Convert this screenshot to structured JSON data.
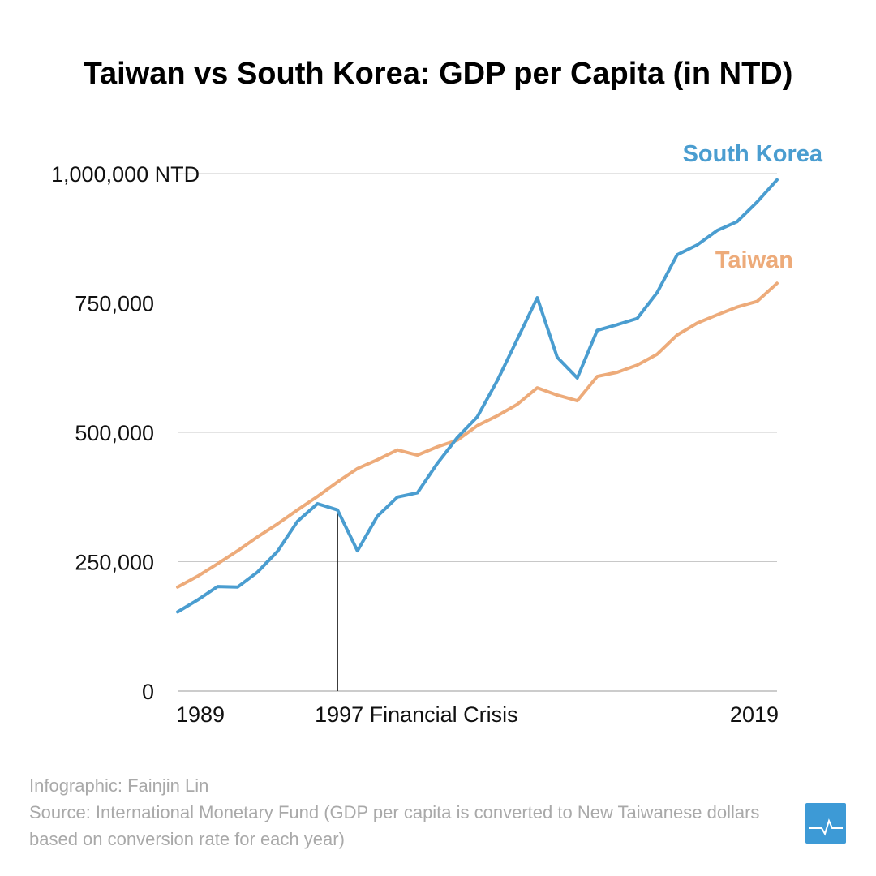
{
  "header": {
    "title": "Taiwan vs South Korea: GDP per Capita (in NTD)"
  },
  "footer": {
    "credit": "Infographic: Fainjin Lin",
    "source": "Source: International Monetary Fund (GDP per capita is converted to New Taiwanese dollars based on conversion rate for each year)"
  },
  "colors": {
    "south_korea": "#4a9dd0",
    "taiwan": "#edab7a",
    "grid": "#c8c8c8",
    "logo": "#3d9ad6"
  },
  "logo": {
    "icon": "heartbeat-chart-icon"
  },
  "chart_data": {
    "type": "line",
    "title": "Taiwan vs South Korea: GDP per Capita (in NTD)",
    "xlabel": "",
    "ylabel": "",
    "x": [
      1989,
      1990,
      1991,
      1992,
      1993,
      1994,
      1995,
      1996,
      1997,
      1998,
      1999,
      2000,
      2001,
      2002,
      2003,
      2004,
      2005,
      2006,
      2007,
      2008,
      2009,
      2010,
      2011,
      2012,
      2013,
      2014,
      2015,
      2016,
      2017,
      2018,
      2019
    ],
    "ylim": [
      0,
      1000000
    ],
    "xlim": [
      1989,
      2019
    ],
    "y_ticks": [
      {
        "value": 0,
        "label": "0"
      },
      {
        "value": 250000,
        "label": "250,000"
      },
      {
        "value": 500000,
        "label": "500,000"
      },
      {
        "value": 750000,
        "label": "750,000"
      },
      {
        "value": 1000000,
        "label": "1,000,000 NTD"
      }
    ],
    "x_ticks": [
      {
        "value": 1989,
        "label": "1989"
      },
      {
        "value": 1997,
        "label": "1997 Financial Crisis"
      },
      {
        "value": 2019,
        "label": "2019"
      }
    ],
    "annotation": {
      "x": 1997,
      "y": 350000,
      "label": "1997 Financial Crisis"
    },
    "grid": true,
    "series": [
      {
        "name": "South Korea",
        "values": [
          153000,
          176000,
          202000,
          201000,
          230000,
          270000,
          328000,
          362000,
          350000,
          271000,
          338000,
          375000,
          383000,
          440000,
          490000,
          530000,
          600000,
          680000,
          760000,
          645000,
          605000,
          697000,
          708000,
          720000,
          770000,
          843000,
          862000,
          890000,
          907000,
          945000,
          988000
        ]
      },
      {
        "name": "Taiwan",
        "values": [
          201000,
          222000,
          246000,
          271000,
          298000,
          323000,
          350000,
          376000,
          404000,
          430000,
          447000,
          466000,
          456000,
          472000,
          485000,
          513000,
          532000,
          554000,
          586000,
          572000,
          561000,
          608000,
          616000,
          630000,
          651000,
          688000,
          711000,
          727000,
          742000,
          753000,
          788000
        ]
      }
    ]
  }
}
